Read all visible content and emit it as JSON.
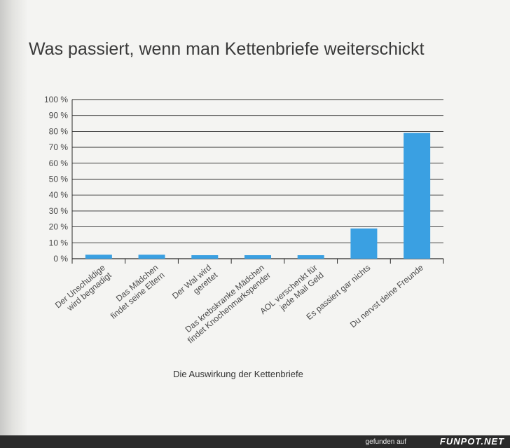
{
  "chart_data": {
    "type": "bar",
    "title": "Was passiert, wenn man Kettenbriefe weiterschickt",
    "xlabel": "Die Auswirkung der Kettenbriefe",
    "ylabel": "",
    "ylim": [
      0,
      100
    ],
    "yticks": [
      "0 %",
      "10 %",
      "20 %",
      "30 %",
      "40 %",
      "50 %",
      "60 %",
      "70 %",
      "80 %",
      "90 %",
      "100 %"
    ],
    "categories": [
      [
        "Der Unschuldige",
        "wird begnadigt"
      ],
      [
        "Das Mädchen",
        "findet seine Eltern"
      ],
      [
        "Der Wal wird",
        "gerettet"
      ],
      [
        "Das krebskranke Mädchen",
        "findet Knochenmarkspender"
      ],
      [
        "AOL verschenkt für",
        "jede Mail Geld"
      ],
      [
        "Es passiert gar nichts"
      ],
      [
        "Du nervst deine Freunde"
      ]
    ],
    "values": [
      2.5,
      2.5,
      2.2,
      2.2,
      2.2,
      19,
      79
    ],
    "colors": {
      "bar": "#3aa0e2",
      "grid": "#2b2b2b",
      "text": "#4a4a4a"
    }
  },
  "footer": {
    "credit_label": "gefunden auf",
    "credit_brand": "FUNPOT.NET"
  }
}
